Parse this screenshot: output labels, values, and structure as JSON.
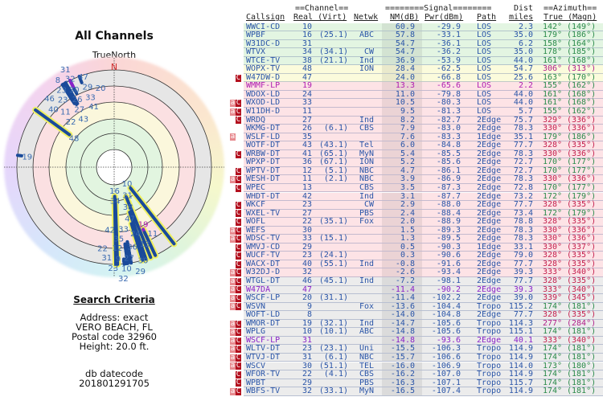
{
  "left": {
    "title": "All Channels",
    "plot_label": "TrueNorth",
    "north_label": "N",
    "search_heading": "Search Criteria",
    "address": "Address: exact",
    "city": "VERO BEACH, FL",
    "postal": "Postal code 32960",
    "height": "Height: 20.0 ft.",
    "db_label": "db datecode",
    "db_value": "201801291705"
  },
  "header": {
    "channel_group": "==Channel==",
    "signal_group": "========Signal========",
    "dist_top": "Dist",
    "azimuth_group": "==Azimuth==",
    "callsign": "Callsign",
    "real_virt": "Real (Virt)",
    "netwk": "Netwk",
    "nm": "NM(dB)",
    "pwr": "Pwr(dBm)",
    "path": "Path",
    "miles": "miles",
    "true_magn": "True (Magn)"
  },
  "colors": {
    "text_blue": "#2a55a8",
    "text_magenta": "#b020b0",
    "text_purple": "#8a22c8",
    "az_green": "#2a8a4a",
    "az_red": "#c4204e",
    "az_magenta": "#b0208a",
    "badge_a": "#e78a8f",
    "badge_c": "#b3101e",
    "line": "#1a4a9a",
    "halo": "#eef060"
  },
  "rows": [
    {
      "b": "",
      "cs": "WWCI-CD",
      "r": "10",
      "v": "",
      "n": "",
      "nm": "60.9",
      "p": "-29.9",
      "pa": "LOS",
      "d": "2.3",
      "t": "142°",
      "m": "(149°)",
      "bg": "green",
      "az": "g"
    },
    {
      "b": "",
      "cs": "WPBF",
      "r": "16",
      "v": "(25.1)",
      "n": "ABC",
      "nm": "57.8",
      "p": "-33.1",
      "pa": "LOS",
      "d": "35.0",
      "t": "179°",
      "m": "(186°)",
      "bg": "green",
      "az": "g"
    },
    {
      "b": "",
      "cs": "W31DC-D",
      "r": "31",
      "v": "",
      "n": "",
      "nm": "54.7",
      "p": "-36.1",
      "pa": "LOS",
      "d": "6.2",
      "t": "158°",
      "m": "(164°)",
      "bg": "green",
      "az": "g"
    },
    {
      "b": "",
      "cs": "WTVX",
      "r": "34",
      "v": "(34.1)",
      "n": "CW",
      "nm": "54.7",
      "p": "-36.2",
      "pa": "LOS",
      "d": "35.0",
      "t": "178°",
      "m": "(185°)",
      "bg": "green",
      "az": "g"
    },
    {
      "b": "",
      "cs": "WTCE-TV",
      "r": "38",
      "v": "(21.1)",
      "n": "Ind",
      "nm": "36.9",
      "p": "-53.9",
      "pa": "LOS",
      "d": "44.0",
      "t": "161°",
      "m": "(168°)",
      "bg": "green",
      "az": "g"
    },
    {
      "b": "",
      "cs": "WOPX-TV",
      "r": "48",
      "v": "",
      "n": "ION",
      "nm": "28.4",
      "p": "-62.5",
      "pa": "LOS",
      "d": "54.7",
      "t": "306°",
      "m": "(313°)",
      "bg": "yellow",
      "az": "m"
    },
    {
      "b": "C",
      "cs": "W47DW-D",
      "r": "47",
      "v": "",
      "n": "",
      "nm": "24.0",
      "p": "-66.8",
      "pa": "LOS",
      "d": "25.6",
      "t": "163°",
      "m": "(170°)",
      "bg": "yellow",
      "az": "g"
    },
    {
      "b": "",
      "cs": "WMMF-LP",
      "r": "19",
      "v": "",
      "n": "",
      "nm": "13.3",
      "p": "-65.6",
      "pa": "LOS",
      "d": "2.2",
      "t": "155°",
      "m": "(162°)",
      "bg": "pink",
      "az": "g",
      "tc": "magenta"
    },
    {
      "b": "",
      "cs": "WDOX-LD",
      "r": "24",
      "v": "",
      "n": "",
      "nm": "11.0",
      "p": "-79.8",
      "pa": "LOS",
      "d": "44.0",
      "t": "161°",
      "m": "(168°)",
      "bg": "pink",
      "az": "g"
    },
    {
      "b": "aC",
      "cs": "WXOD-LD",
      "r": "33",
      "v": "",
      "n": "",
      "nm": "10.5",
      "p": "-80.3",
      "pa": "LOS",
      "d": "44.0",
      "t": "161°",
      "m": "(168°)",
      "bg": "pink",
      "az": "g"
    },
    {
      "b": "aC",
      "cs": "W11DH-D",
      "r": "11",
      "v": "",
      "n": "",
      "nm": "9.5",
      "p": "-81.3",
      "pa": "LOS",
      "d": "5.7",
      "t": "155°",
      "m": "(162°)",
      "bg": "pink",
      "az": "g"
    },
    {
      "b": "C",
      "cs": "WRDQ",
      "r": "27",
      "v": "",
      "n": "Ind",
      "nm": "8.2",
      "p": "-82.7",
      "pa": "2Edge",
      "d": "75.7",
      "t": "329°",
      "m": "(336°)",
      "bg": "pink",
      "az": "r"
    },
    {
      "b": "",
      "cs": "WKMG-DT",
      "r": "26",
      "v": "(6.1)",
      "n": "CBS",
      "nm": "7.9",
      "p": "-83.0",
      "pa": "2Edge",
      "d": "78.3",
      "t": "330°",
      "m": "(336°)",
      "bg": "pink",
      "az": "r"
    },
    {
      "b": "a",
      "cs": "WSLF-LD",
      "r": "35",
      "v": "",
      "n": "",
      "nm": "7.6",
      "p": "-83.3",
      "pa": "1Edge",
      "d": "35.1",
      "t": "179°",
      "m": "(186°)",
      "bg": "pink",
      "az": "g"
    },
    {
      "b": "",
      "cs": "WOTF-DT",
      "r": "43",
      "v": "(43.1)",
      "n": "Tel",
      "nm": "6.0",
      "p": "-84.8",
      "pa": "2Edge",
      "d": "77.7",
      "t": "328°",
      "m": "(335°)",
      "bg": "pink",
      "az": "r"
    },
    {
      "b": "C",
      "cs": "WRBW-DT",
      "r": "41",
      "v": "(65.1)",
      "n": "MyN",
      "nm": "5.4",
      "p": "-85.5",
      "pa": "2Edge",
      "d": "78.3",
      "t": "330°",
      "m": "(336°)",
      "bg": "pink",
      "az": "r"
    },
    {
      "b": "",
      "cs": "WPXP-DT",
      "r": "36",
      "v": "(67.1)",
      "n": "ION",
      "nm": "5.2",
      "p": "-85.6",
      "pa": "2Edge",
      "d": "72.7",
      "t": "170°",
      "m": "(177°)",
      "bg": "pink",
      "az": "g"
    },
    {
      "b": "C",
      "cs": "WPTV-DT",
      "r": "12",
      "v": "(5.1)",
      "n": "NBC",
      "nm": "4.7",
      "p": "-86.1",
      "pa": "2Edge",
      "d": "72.7",
      "t": "170°",
      "m": "(177°)",
      "bg": "pink",
      "az": "g"
    },
    {
      "b": "aC",
      "cs": "WESH-DT",
      "r": "11",
      "v": "(2.1)",
      "n": "NBC",
      "nm": "3.9",
      "p": "-86.9",
      "pa": "2Edge",
      "d": "78.3",
      "t": "330°",
      "m": "(336°)",
      "bg": "pink",
      "az": "r"
    },
    {
      "b": "C",
      "cs": "WPEC",
      "r": "13",
      "v": "",
      "n": "CBS",
      "nm": "3.5",
      "p": "-87.3",
      "pa": "2Edge",
      "d": "72.8",
      "t": "170°",
      "m": "(177°)",
      "bg": "pink",
      "az": "g"
    },
    {
      "b": "",
      "cs": "WHDT-DT",
      "r": "42",
      "v": "",
      "n": "Ind",
      "nm": "3.1",
      "p": "-87.7",
      "pa": "2Edge",
      "d": "73.2",
      "t": "172°",
      "m": "(179°)",
      "bg": "pink",
      "az": "g"
    },
    {
      "b": "C",
      "cs": "WKCF",
      "r": "23",
      "v": "",
      "n": "CW",
      "nm": "2.9",
      "p": "-88.0",
      "pa": "2Edge",
      "d": "77.7",
      "t": "328°",
      "m": "(335°)",
      "bg": "pink",
      "az": "r"
    },
    {
      "b": "C",
      "cs": "WXEL-TV",
      "r": "27",
      "v": "",
      "n": "PBS",
      "nm": "2.4",
      "p": "-88.4",
      "pa": "2Edge",
      "d": "73.4",
      "t": "172°",
      "m": "(179°)",
      "bg": "pink",
      "az": "g"
    },
    {
      "b": "C",
      "cs": "WOFL",
      "r": "22",
      "v": "(35.1)",
      "n": "Fox",
      "nm": "2.0",
      "p": "-88.9",
      "pa": "2Edge",
      "d": "78.8",
      "t": "328°",
      "m": "(335°)",
      "bg": "pink",
      "az": "r"
    },
    {
      "b": "aC",
      "cs": "WEFS",
      "r": "30",
      "v": "",
      "n": "",
      "nm": "1.5",
      "p": "-89.3",
      "pa": "2Edge",
      "d": "78.3",
      "t": "330°",
      "m": "(336°)",
      "bg": "pink",
      "az": "r"
    },
    {
      "b": "aC",
      "cs": "WDSC-TV",
      "r": "33",
      "v": "(15.1)",
      "n": "",
      "nm": "1.3",
      "p": "-89.5",
      "pa": "2Edge",
      "d": "78.3",
      "t": "330°",
      "m": "(336°)",
      "bg": "pink",
      "az": "r"
    },
    {
      "b": "C",
      "cs": "WMVJ-CD",
      "r": "29",
      "v": "",
      "n": "",
      "nm": "0.5",
      "p": "-90.3",
      "pa": "1Edge",
      "d": "33.1",
      "t": "330°",
      "m": "(337°)",
      "bg": "pink",
      "az": "r"
    },
    {
      "b": "C",
      "cs": "WUCF-TV",
      "r": "23",
      "v": "(24.1)",
      "n": "",
      "nm": "0.3",
      "p": "-90.6",
      "pa": "2Edge",
      "d": "79.0",
      "t": "328°",
      "m": "(335°)",
      "bg": "pink",
      "az": "r"
    },
    {
      "b": "C",
      "cs": "WACX-DT",
      "r": "40",
      "v": "(55.1)",
      "n": "Ind",
      "nm": "-0.8",
      "p": "-91.6",
      "pa": "2Edge",
      "d": "77.7",
      "t": "328°",
      "m": "(335°)",
      "bg": "pink",
      "az": "r"
    },
    {
      "b": "aC",
      "cs": "W32DJ-D",
      "r": "32",
      "v": "",
      "n": "",
      "nm": "-2.6",
      "p": "-93.4",
      "pa": "2Edge",
      "d": "39.3",
      "t": "333°",
      "m": "(340°)",
      "bg": "pink",
      "az": "r"
    },
    {
      "b": "aC",
      "cs": "WTGL-DT",
      "r": "46",
      "v": "(45.1)",
      "n": "Ind",
      "nm": "-7.2",
      "p": "-98.1",
      "pa": "2Edge",
      "d": "77.7",
      "t": "328°",
      "m": "(335°)",
      "bg": "gray",
      "az": "r"
    },
    {
      "b": "aC",
      "cs": "W47DA",
      "r": "47",
      "v": "",
      "n": "",
      "nm": "-11.4",
      "p": "-90.2",
      "pa": "2Edge",
      "d": "39.3",
      "t": "333°",
      "m": "(340°)",
      "bg": "gray",
      "az": "r",
      "tc": "purple"
    },
    {
      "b": "aC",
      "cs": "WSCF-LP",
      "r": "20",
      "v": "(31.1)",
      "n": "",
      "nm": "-11.4",
      "p": "-102.2",
      "pa": "2Edge",
      "d": "39.0",
      "t": "339°",
      "m": "(345°)",
      "bg": "gray",
      "az": "r"
    },
    {
      "b": "aC",
      "cs": "WSVN",
      "r": "9",
      "v": "",
      "n": "Fox",
      "nm": "-13.6",
      "p": "-104.4",
      "pa": "Tropo",
      "d": "115.2",
      "t": "174°",
      "m": "(181°)",
      "bg": "gray",
      "az": "g"
    },
    {
      "b": "",
      "cs": "WOFT-LD",
      "r": "8",
      "v": "",
      "n": "",
      "nm": "-14.0",
      "p": "-104.8",
      "pa": "2Edge",
      "d": "77.7",
      "t": "328°",
      "m": "(335°)",
      "bg": "gray",
      "az": "r"
    },
    {
      "b": "aC",
      "cs": "WMOR-DT",
      "r": "19",
      "v": "(32.1)",
      "n": "Ind",
      "nm": "-14.7",
      "p": "-105.6",
      "pa": "Tropo",
      "d": "114.3",
      "t": "277°",
      "m": "(284°)",
      "bg": "gray",
      "az": "m"
    },
    {
      "b": "aC",
      "cs": "WPLG",
      "r": "10",
      "v": "(10.1)",
      "n": "ABC",
      "nm": "-14.8",
      "p": "-105.6",
      "pa": "Tropo",
      "d": "115.1",
      "t": "174°",
      "m": "(181°)",
      "bg": "gray",
      "az": "g"
    },
    {
      "b": "aC",
      "cs": "WSCF-LP",
      "r": "31",
      "v": "",
      "n": "",
      "nm": "-14.8",
      "p": "-93.6",
      "pa": "2Edge",
      "d": "40.1",
      "t": "333°",
      "m": "(340°)",
      "bg": "gray",
      "az": "r",
      "tc": "purple"
    },
    {
      "b": "aC",
      "cs": "WLTV-DT",
      "r": "23",
      "v": "(23.1)",
      "n": "Uni",
      "nm": "-15.5",
      "p": "-106.3",
      "pa": "Tropo",
      "d": "114.9",
      "t": "174°",
      "m": "(181°)",
      "bg": "gray",
      "az": "g"
    },
    {
      "b": "aC",
      "cs": "WTVJ-DT",
      "r": "31",
      "v": "(6.1)",
      "n": "NBC",
      "nm": "-15.7",
      "p": "-106.6",
      "pa": "Tropo",
      "d": "114.9",
      "t": "174°",
      "m": "(181°)",
      "bg": "gray",
      "az": "g"
    },
    {
      "b": "aC",
      "cs": "WSCV",
      "r": "30",
      "v": "(51.1)",
      "n": "TEL",
      "nm": "-16.0",
      "p": "-106.9",
      "pa": "Tropo",
      "d": "114.0",
      "t": "173°",
      "m": "(180°)",
      "bg": "gray",
      "az": "g"
    },
    {
      "b": "C",
      "cs": "WFOR-TV",
      "r": "22",
      "v": "(4.1)",
      "n": "CBS",
      "nm": "-16.2",
      "p": "-107.0",
      "pa": "Tropo",
      "d": "114.9",
      "t": "174°",
      "m": "(181°)",
      "bg": "gray",
      "az": "g"
    },
    {
      "b": "C",
      "cs": "WPBT",
      "r": "29",
      "v": "",
      "n": "PBS",
      "nm": "-16.3",
      "p": "-107.1",
      "pa": "Tropo",
      "d": "115.7",
      "t": "174°",
      "m": "(181°)",
      "bg": "gray",
      "az": "g"
    },
    {
      "b": "aC",
      "cs": "WBFS-TV",
      "r": "32",
      "v": "(33.1)",
      "n": "MyN",
      "nm": "-16.5",
      "p": "-107.4",
      "pa": "Tropo",
      "d": "114.9",
      "t": "174°",
      "m": "(181°)",
      "bg": "gray",
      "az": "g"
    }
  ]
}
